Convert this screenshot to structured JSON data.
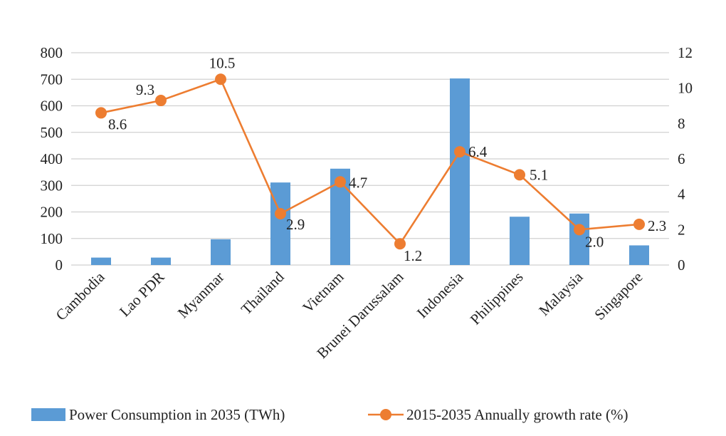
{
  "chart_data": {
    "type": "bar",
    "categories": [
      "Cambodia",
      "Lao PDR",
      "Myanmar",
      "Thailand",
      "Vietnam",
      "Brunei Darussalam",
      "Indonesia",
      "Philippines",
      "Malaysia",
      "Singapore"
    ],
    "series": [
      {
        "name": "Power Consumption in 2035 (TWh)",
        "type": "bar",
        "axis": "left",
        "color": "#5b9bd5",
        "values": [
          28,
          28,
          97,
          311,
          363,
          0,
          703,
          182,
          194,
          74
        ]
      },
      {
        "name": "2015-2035 Annually growth rate (%)",
        "type": "line",
        "axis": "right",
        "color": "#ed7d31",
        "values": [
          8.6,
          9.3,
          10.5,
          2.9,
          4.7,
          1.2,
          6.4,
          5.1,
          2.0,
          2.3
        ],
        "data_labels": [
          "8.6",
          "9.3",
          "10.5",
          "2.9",
          "4.7",
          "1.2",
          "6.4",
          "5.1",
          "2.0",
          "2.3"
        ]
      }
    ],
    "y_left": {
      "ticks": [
        "0",
        "100",
        "200",
        "300",
        "400",
        "500",
        "600",
        "700",
        "800"
      ],
      "ylim": [
        0,
        800
      ]
    },
    "y_right": {
      "ticks": [
        "0",
        "2",
        "4",
        "6",
        "8",
        "10",
        "12"
      ],
      "ylim": [
        0,
        12
      ]
    },
    "grid": true,
    "legend_position": "bottom"
  }
}
